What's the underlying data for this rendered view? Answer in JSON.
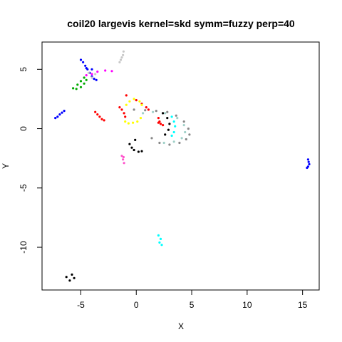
{
  "chart_data": {
    "type": "scatter",
    "title": "coil20 largevis kernel=skd symm=fuzzy perp=40",
    "xlabel": "X",
    "ylabel": "Y",
    "xlim": [
      -8.5,
      16.5
    ],
    "ylim": [
      -13.6,
      7.3
    ],
    "xticks": [
      -5,
      0,
      5,
      10,
      15
    ],
    "yticks": [
      -10,
      -5,
      0,
      5
    ],
    "grid": false,
    "legend": "none",
    "series": [
      {
        "color": "#0000ff",
        "points": [
          [
            -7.3,
            0.9
          ],
          [
            -7.1,
            1.0
          ],
          [
            -6.9,
            1.2
          ],
          [
            -6.7,
            1.35
          ],
          [
            -6.5,
            1.5
          ],
          [
            -5.0,
            5.8
          ],
          [
            -4.8,
            5.6
          ],
          [
            -4.6,
            5.3
          ],
          [
            -4.4,
            5.0
          ],
          [
            -4.2,
            4.7
          ],
          [
            -4.0,
            4.4
          ],
          [
            -3.8,
            4.2
          ],
          [
            -3.6,
            4.1
          ],
          [
            -4.5,
            5.1
          ],
          [
            -4.0,
            5.0
          ],
          [
            15.5,
            -2.6
          ],
          [
            15.55,
            -2.8
          ],
          [
            15.6,
            -3.0
          ],
          [
            15.5,
            -3.2
          ],
          [
            15.4,
            -3.3
          ]
        ]
      },
      {
        "color": "#00aa00",
        "points": [
          [
            -5.7,
            3.4
          ],
          [
            -5.4,
            3.35
          ],
          [
            -5.0,
            3.5
          ],
          [
            -4.7,
            3.8
          ],
          [
            -4.5,
            4.1
          ],
          [
            -4.7,
            4.3
          ],
          [
            -5.0,
            4.0
          ],
          [
            -5.3,
            3.7
          ]
        ]
      },
      {
        "color": "#ff00ff",
        "points": [
          [
            -4.5,
            4.5
          ],
          [
            -4.0,
            4.6
          ],
          [
            -3.5,
            4.8
          ],
          [
            -2.8,
            4.9
          ],
          [
            -2.2,
            4.85
          ]
        ]
      },
      {
        "color": "#c8c8c8",
        "points": [
          [
            -1.5,
            5.6
          ],
          [
            -1.4,
            5.8
          ],
          [
            -1.3,
            6.0
          ],
          [
            -1.2,
            6.2
          ],
          [
            -1.15,
            6.5
          ],
          [
            -4.3,
            4.7
          ],
          [
            -4.0,
            4.3
          ],
          [
            -3.7,
            4.6
          ]
        ]
      },
      {
        "color": "#ff0000",
        "points": [
          [
            -3.7,
            1.4
          ],
          [
            -3.5,
            1.2
          ],
          [
            -3.3,
            1.0
          ],
          [
            -3.1,
            0.8
          ],
          [
            -2.9,
            0.7
          ],
          [
            -1.5,
            1.8
          ],
          [
            -1.3,
            1.6
          ],
          [
            -1.1,
            1.3
          ],
          [
            -1.0,
            1.0
          ],
          [
            2.0,
            0.9
          ],
          [
            2.1,
            0.6
          ],
          [
            2.2,
            0.4
          ],
          [
            2.4,
            0.3
          ],
          [
            2.0,
            0.5
          ],
          [
            -0.9,
            2.8
          ],
          [
            0.0,
            2.4
          ],
          [
            0.5,
            2.1
          ],
          [
            0.9,
            1.8
          ],
          [
            1.1,
            1.6
          ]
        ]
      },
      {
        "color": "#ffff00",
        "points": [
          [
            -0.9,
            2.0
          ],
          [
            -0.6,
            2.3
          ],
          [
            -0.2,
            2.5
          ],
          [
            0.3,
            2.3
          ],
          [
            0.5,
            2.0
          ],
          [
            -1.0,
            0.6
          ],
          [
            -0.7,
            0.45
          ],
          [
            -0.3,
            0.5
          ],
          [
            0.1,
            0.6
          ],
          [
            0.4,
            0.9
          ]
        ]
      },
      {
        "color": "#00ffff",
        "points": [
          [
            3.2,
            1.0
          ],
          [
            3.4,
            0.6
          ],
          [
            3.5,
            0.2
          ],
          [
            3.4,
            -0.3
          ],
          [
            3.2,
            -0.6
          ],
          [
            2.0,
            -9.0
          ],
          [
            2.2,
            -9.3
          ],
          [
            2.1,
            -9.6
          ],
          [
            2.3,
            -9.8
          ]
        ]
      },
      {
        "color": "#000000",
        "points": [
          [
            2.4,
            1.3
          ],
          [
            2.8,
            0.9
          ],
          [
            3.0,
            0.4
          ],
          [
            2.9,
            -0.1
          ],
          [
            2.6,
            -0.5
          ],
          [
            -0.6,
            -1.3
          ],
          [
            -0.4,
            -1.6
          ],
          [
            -0.2,
            -1.8
          ],
          [
            0.2,
            -1.95
          ],
          [
            0.5,
            -1.9
          ],
          [
            -0.1,
            -0.95
          ],
          [
            -5.8,
            -12.3
          ],
          [
            -5.6,
            -12.6
          ],
          [
            -6.0,
            -12.8
          ],
          [
            -6.3,
            -12.5
          ]
        ]
      },
      {
        "color": "#ff55cc",
        "points": [
          [
            -1.3,
            -2.3
          ],
          [
            -1.2,
            -2.6
          ],
          [
            -1.1,
            -2.9
          ],
          [
            -1.15,
            -2.4
          ]
        ]
      },
      {
        "color": "#888888",
        "points": [
          [
            -0.2,
            1.6
          ],
          [
            0.8,
            1.55
          ],
          [
            1.8,
            1.5
          ],
          [
            2.8,
            1.4
          ],
          [
            3.6,
            1.1
          ],
          [
            4.3,
            0.6
          ],
          [
            4.7,
            0.0
          ],
          [
            4.8,
            -0.5
          ],
          [
            4.5,
            -0.9
          ],
          [
            3.9,
            -1.2
          ],
          [
            3.0,
            -1.35
          ],
          [
            2.1,
            -1.2
          ],
          [
            1.4,
            -0.8
          ]
        ]
      },
      {
        "color": "#a0d0c8",
        "points": [
          [
            0.6,
            1.3
          ],
          [
            1.5,
            1.4
          ],
          [
            2.6,
            1.3
          ],
          [
            3.7,
            0.9
          ],
          [
            4.3,
            0.3
          ],
          [
            4.4,
            -0.3
          ],
          [
            4.1,
            -0.8
          ],
          [
            3.4,
            -1.1
          ],
          [
            2.5,
            -1.2
          ]
        ]
      }
    ]
  }
}
